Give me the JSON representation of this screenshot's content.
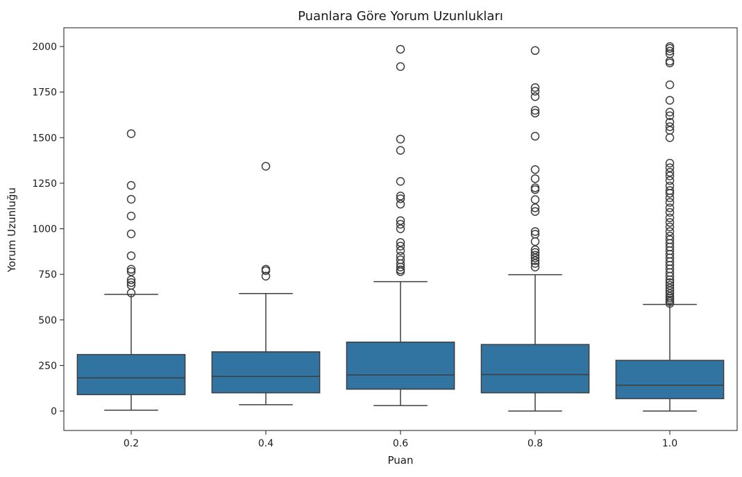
{
  "chart_data": {
    "type": "box",
    "title": "Puanlara Göre Yorum Uzunlukları",
    "xlabel": "Puan",
    "ylabel": "Yorum Uzunluğu",
    "ylim": [
      -100,
      2100
    ],
    "yticks": [
      0,
      250,
      500,
      750,
      1000,
      1250,
      1500,
      1750,
      2000
    ],
    "categories": [
      "0.2",
      "0.4",
      "0.6",
      "0.8",
      "1.0"
    ],
    "box_color": "#3274a1",
    "line_color": "#3d3d3d",
    "boxes": [
      {
        "category": "0.2",
        "whisker_low": 5,
        "q1": 90,
        "median": 182,
        "q3": 310,
        "whisker_high": 640,
        "outliers": [
          648,
          690,
          705,
          720,
          765,
          778,
          852,
          972,
          1070,
          1162,
          1238,
          1522
        ]
      },
      {
        "category": "0.4",
        "whisker_low": 35,
        "q1": 100,
        "median": 190,
        "q3": 325,
        "whisker_high": 645,
        "outliers": [
          740,
          770,
          778,
          1343
        ]
      },
      {
        "category": "0.6",
        "whisker_low": 30,
        "q1": 120,
        "median": 198,
        "q3": 378,
        "whisker_high": 710,
        "outliers": [
          765,
          775,
          790,
          808,
          830,
          850,
          880,
          905,
          925,
          1000,
          1025,
          1045,
          1135,
          1165,
          1180,
          1260,
          1430,
          1492,
          1890,
          1985
        ]
      },
      {
        "category": "0.8",
        "whisker_low": 0,
        "q1": 100,
        "median": 200,
        "q3": 365,
        "whisker_high": 748,
        "outliers": [
          790,
          810,
          825,
          840,
          855,
          870,
          885,
          930,
          970,
          985,
          1095,
          1115,
          1160,
          1215,
          1225,
          1275,
          1325,
          1508,
          1635,
          1650,
          1725,
          1755,
          1775,
          1978
        ]
      },
      {
        "category": "1.0",
        "whisker_low": 0,
        "q1": 68,
        "median": 142,
        "q3": 278,
        "whisker_high": 585,
        "outliers": [
          590,
          600,
          610,
          620,
          630,
          645,
          660,
          675,
          690,
          705,
          720,
          740,
          760,
          780,
          800,
          820,
          840,
          860,
          880,
          900,
          920,
          940,
          960,
          985,
          1010,
          1035,
          1060,
          1090,
          1115,
          1145,
          1170,
          1195,
          1210,
          1235,
          1265,
          1290,
          1310,
          1335,
          1360,
          1500,
          1540,
          1560,
          1585,
          1620,
          1640,
          1705,
          1790,
          1910,
          1920,
          1960,
          1975,
          1990,
          2000
        ]
      }
    ]
  }
}
